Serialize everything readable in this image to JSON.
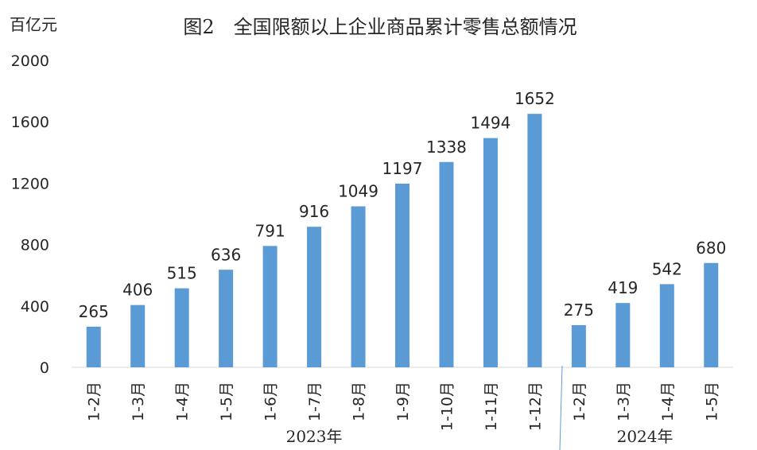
{
  "chart_data": {
    "type": "bar",
    "title": "图2　全国限额以上企业商品累计零售总额情况",
    "ylabel": "百亿元",
    "ylim": [
      0,
      2000
    ],
    "yticks": [
      0,
      400,
      800,
      1200,
      1600,
      2000
    ],
    "grid": false,
    "legend": "none",
    "bar_color": "#5B9BD5",
    "categories": [
      "1-2月",
      "1-3月",
      "1-4月",
      "1-5月",
      "1-6月",
      "1-7月",
      "1-8月",
      "1-9月",
      "1-10月",
      "1-11月",
      "1-12月",
      "1-2月",
      "1-3月",
      "1-4月",
      "1-5月"
    ],
    "values": [
      265,
      406,
      515,
      636,
      791,
      916,
      1049,
      1197,
      1338,
      1494,
      1652,
      275,
      419,
      542,
      680
    ],
    "groups": [
      {
        "label": "2023年",
        "start": 0,
        "end": 10
      },
      {
        "label": "2024年",
        "start": 11,
        "end": 14
      }
    ]
  }
}
